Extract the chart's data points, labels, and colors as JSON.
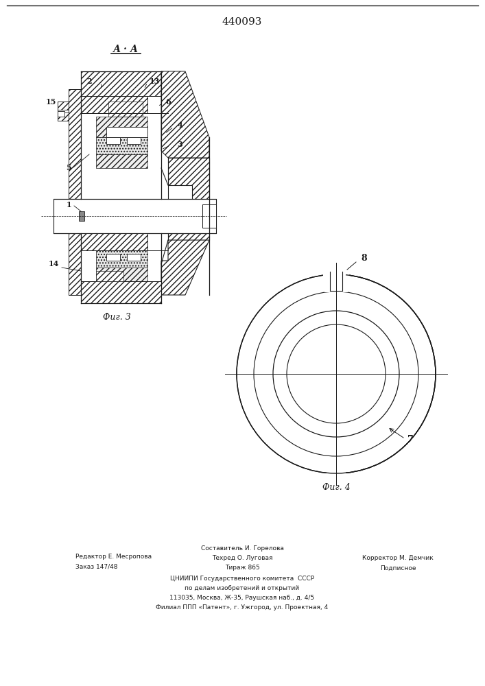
{
  "title": "440093",
  "fig3_label": "Фиг. 3",
  "fig4_label": "Фиг. 4",
  "section_label": "А · А",
  "footer_col1_line1": "Редактор Е. Месропова",
  "footer_col1_line2": "Заказ 147/48",
  "footer_col2_line0": "Составитель И. Горелова",
  "footer_col2_line1": "Техред О. Луговая",
  "footer_col2_line2": "Тираж 865",
  "footer_col3_line1": "Корректор М. Демчик",
  "footer_col3_line2": "Подписное",
  "footer_center1": "ЦНИИПИ Государственного комитета  СССР",
  "footer_center2": "по делам изобретений и открытий",
  "footer_center3": "113035, Москва, Ж-35, Раушская наб., д. 4/5",
  "footer_center4": "Филиал ППП «Патент», г. Ужгород, ул. Проектная, 4",
  "bg_color": "#ffffff",
  "line_color": "#1a1a1a"
}
